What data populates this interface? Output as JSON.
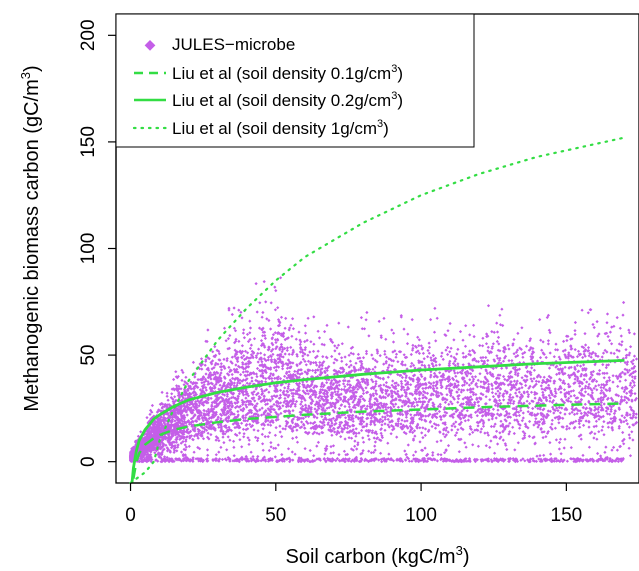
{
  "chart_data": {
    "type": "scatter",
    "xlabel": "Soil carbon (kgC/m",
    "xlabel_sup": "3",
    "xlabel_close": ")",
    "ylabel": "Methanogenic biomass carbon (gC/m",
    "ylabel_sup": "3",
    "ylabel_close": ")",
    "xlim": [
      -5,
      175
    ],
    "ylim": [
      -10,
      210
    ],
    "x_ticks": [
      0,
      50,
      100,
      150
    ],
    "y_ticks": [
      0,
      50,
      100,
      150,
      200
    ],
    "grid": false,
    "legend_position": "top-left",
    "colors": {
      "points": "#c45ee8",
      "lines": "#33dd44"
    },
    "series": [
      {
        "name": "JULES−microbe",
        "style": "points",
        "description_points": "dense cloud, 0–175 kgC/m3, 0–100 gC/m3",
        "cloud_envelope": {
          "x": [
            0,
            5,
            10,
            20,
            30,
            40,
            50,
            60,
            80,
            100,
            120,
            150,
            175
          ],
          "lower": [
            0,
            0,
            0,
            0,
            0,
            0,
            0,
            0,
            0,
            0,
            0,
            0,
            0
          ],
          "upper": [
            5,
            20,
            35,
            55,
            70,
            85,
            95,
            75,
            70,
            75,
            80,
            80,
            85
          ]
        }
      },
      {
        "name_prefix": "Liu et al (soil density 0.1g/cm",
        "name_sup": "3",
        "name_suffix": ")",
        "style": "dashed",
        "x": [
          1,
          2,
          3,
          5,
          8,
          10,
          15,
          20,
          30,
          40,
          50,
          60,
          80,
          100,
          120,
          140,
          160,
          170
        ],
        "y": [
          -8,
          0,
          4,
          8,
          11,
          12.5,
          15,
          16.5,
          18.5,
          20,
          21,
          22,
          23.5,
          24.5,
          25.5,
          26.3,
          27,
          27.3
        ]
      },
      {
        "name_prefix": "Liu et al (soil density 0.2g/cm",
        "name_sup": "3",
        "name_suffix": ")",
        "style": "solid",
        "x": [
          0.5,
          1,
          2,
          3,
          5,
          8,
          10,
          15,
          20,
          30,
          40,
          50,
          60,
          80,
          100,
          120,
          140,
          160,
          170
        ],
        "y": [
          -10,
          -3,
          5,
          10,
          15,
          20,
          22,
          26,
          29,
          32.5,
          35,
          37,
          38.5,
          41,
          43,
          44.5,
          46,
          47,
          47.5
        ]
      },
      {
        "name_prefix": "Liu et al (soil density 1g/cm",
        "name_sup": "3",
        "name_suffix": ")",
        "style": "dotted",
        "x": [
          0,
          5,
          8,
          10,
          15,
          20,
          30,
          40,
          50,
          60,
          80,
          100,
          120,
          140,
          160,
          170
        ],
        "y": [
          -10,
          -5,
          0,
          10,
          25,
          38,
          57,
          72,
          85,
          96,
          112,
          125,
          135,
          143,
          149,
          152
        ]
      }
    ]
  }
}
